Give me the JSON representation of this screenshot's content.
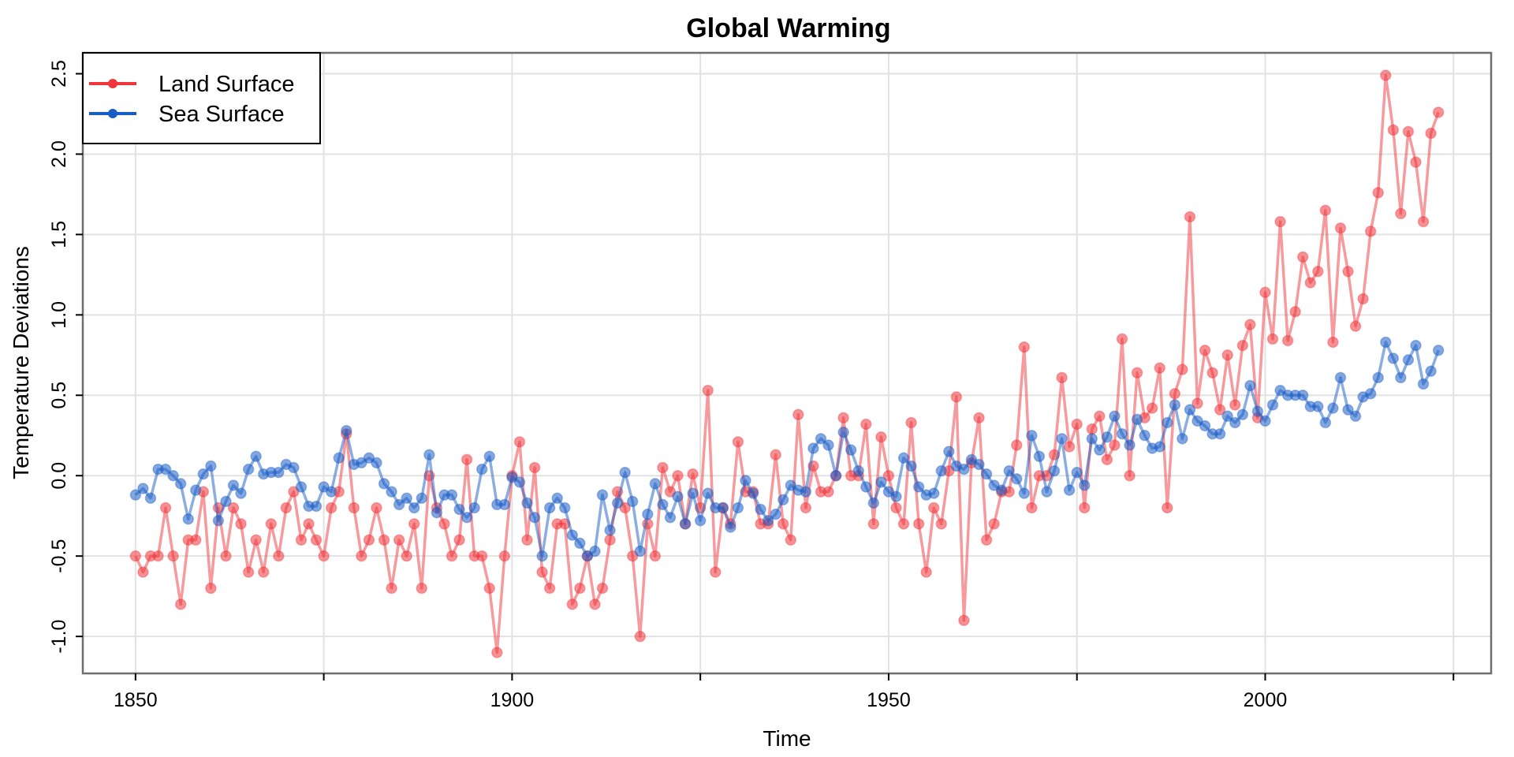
{
  "chart_data": {
    "type": "line",
    "title": "Global Warming",
    "xlabel": "Time",
    "ylabel": "Temperature Deviations",
    "xlim": [
      1843,
      2030
    ],
    "ylim": [
      -1.23,
      2.63
    ],
    "xticks": [
      1850,
      1875,
      1900,
      1925,
      1950,
      1975,
      2000,
      2025
    ],
    "xtick_labels": [
      "1850",
      "",
      "1900",
      "",
      "1950",
      "",
      "2000",
      ""
    ],
    "yticks": [
      -1.0,
      -0.5,
      0.0,
      0.5,
      1.0,
      1.5,
      2.0,
      2.5
    ],
    "ytick_labels": [
      "-1.0",
      "-0.5",
      "0.0",
      "0.5",
      "1.0",
      "1.5",
      "2.0",
      "2.5"
    ],
    "grid": true,
    "legend_position": "top-left",
    "x_start": 1850,
    "series": [
      {
        "name": "Land Surface",
        "color": "#f0353b",
        "values": [
          -0.5,
          -0.6,
          -0.5,
          -0.5,
          -0.2,
          -0.5,
          -0.8,
          -0.4,
          -0.4,
          -0.1,
          -0.7,
          -0.2,
          -0.5,
          -0.2,
          -0.3,
          -0.6,
          -0.4,
          -0.6,
          -0.3,
          -0.5,
          -0.2,
          -0.1,
          -0.4,
          -0.3,
          -0.4,
          -0.5,
          -0.2,
          -0.1,
          0.26,
          -0.2,
          -0.5,
          -0.4,
          -0.2,
          -0.4,
          -0.7,
          -0.4,
          -0.5,
          -0.3,
          -0.7,
          0.0,
          -0.2,
          -0.3,
          -0.5,
          -0.4,
          0.1,
          -0.5,
          -0.5,
          -0.7,
          -1.1,
          -0.5,
          0.0,
          0.21,
          -0.4,
          0.05,
          -0.6,
          -0.7,
          -0.3,
          -0.3,
          -0.8,
          -0.7,
          -0.5,
          -0.8,
          -0.7,
          -0.4,
          -0.1,
          -0.2,
          -0.5,
          -1.0,
          -0.3,
          -0.5,
          0.05,
          -0.1,
          0.0,
          -0.3,
          0.01,
          -0.2,
          0.53,
          -0.6,
          -0.2,
          -0.3,
          0.21,
          -0.1,
          -0.1,
          -0.3,
          -0.3,
          0.13,
          -0.3,
          -0.4,
          0.38,
          -0.2,
          0.06,
          -0.1,
          -0.1,
          0.0,
          0.36,
          0.0,
          0.0,
          0.32,
          -0.3,
          0.24,
          0.0,
          -0.2,
          -0.3,
          0.33,
          -0.3,
          -0.6,
          -0.2,
          -0.3,
          0.03,
          0.49,
          -0.9,
          0.08,
          0.36,
          -0.4,
          -0.3,
          -0.1,
          -0.1,
          0.19,
          0.8,
          -0.2,
          0.0,
          0.0,
          0.13,
          0.61,
          0.18,
          0.32,
          -0.2,
          0.29,
          0.37,
          0.1,
          0.19,
          0.85,
          0.0,
          0.64,
          0.36,
          0.42,
          0.67,
          -0.2,
          0.51,
          0.66,
          1.61,
          0.45,
          0.78,
          0.64,
          0.41,
          0.75,
          0.44,
          0.81,
          0.94,
          0.36,
          1.14,
          0.85,
          1.58,
          0.84,
          1.02,
          1.36,
          1.2,
          1.27,
          1.65,
          0.83,
          1.54,
          1.27,
          0.93,
          1.1,
          1.52,
          1.76,
          2.49,
          2.15,
          1.63,
          2.14,
          1.95,
          1.58,
          2.13,
          2.26
        ]
      },
      {
        "name": "Sea Surface",
        "color": "#1a5cc6",
        "values": [
          -0.12,
          -0.08,
          -0.14,
          0.04,
          0.04,
          0.0,
          -0.05,
          -0.27,
          -0.09,
          0.01,
          0.06,
          -0.28,
          -0.16,
          -0.06,
          -0.11,
          0.04,
          0.12,
          0.01,
          0.02,
          0.02,
          0.07,
          0.05,
          -0.07,
          -0.19,
          -0.19,
          -0.07,
          -0.1,
          0.11,
          0.28,
          0.07,
          0.08,
          0.11,
          0.08,
          -0.05,
          -0.1,
          -0.18,
          -0.14,
          -0.2,
          -0.14,
          0.13,
          -0.23,
          -0.12,
          -0.12,
          -0.21,
          -0.26,
          -0.2,
          0.04,
          0.12,
          -0.18,
          -0.18,
          -0.01,
          -0.04,
          -0.17,
          -0.26,
          -0.5,
          -0.2,
          -0.14,
          -0.2,
          -0.37,
          -0.42,
          -0.5,
          -0.47,
          -0.12,
          -0.34,
          -0.17,
          0.02,
          -0.16,
          -0.47,
          -0.24,
          -0.05,
          -0.18,
          -0.26,
          -0.13,
          -0.3,
          -0.11,
          -0.28,
          -0.11,
          -0.2,
          -0.2,
          -0.32,
          -0.2,
          -0.03,
          -0.11,
          -0.21,
          -0.28,
          -0.24,
          -0.15,
          -0.06,
          -0.09,
          -0.1,
          0.17,
          0.23,
          0.19,
          0.0,
          0.27,
          0.16,
          0.03,
          -0.07,
          -0.17,
          -0.04,
          -0.1,
          -0.13,
          0.11,
          0.06,
          -0.07,
          -0.12,
          -0.11,
          0.03,
          0.15,
          0.06,
          0.04,
          0.1,
          0.07,
          0.01,
          -0.06,
          -0.09,
          0.03,
          -0.02,
          -0.11,
          0.25,
          0.12,
          -0.1,
          0.03,
          0.23,
          -0.09,
          0.02,
          -0.06,
          0.23,
          0.16,
          0.24,
          0.37,
          0.26,
          0.19,
          0.35,
          0.25,
          0.17,
          0.18,
          0.33,
          0.44,
          0.23,
          0.41,
          0.34,
          0.31,
          0.26,
          0.26,
          0.37,
          0.33,
          0.38,
          0.56,
          0.4,
          0.34,
          0.44,
          0.53,
          0.5,
          0.5,
          0.5,
          0.43,
          0.43,
          0.33,
          0.42,
          0.61,
          0.41,
          0.37,
          0.49,
          0.51,
          0.61,
          0.83,
          0.73,
          0.61,
          0.72,
          0.81,
          0.57,
          0.65,
          0.78
        ]
      }
    ]
  }
}
